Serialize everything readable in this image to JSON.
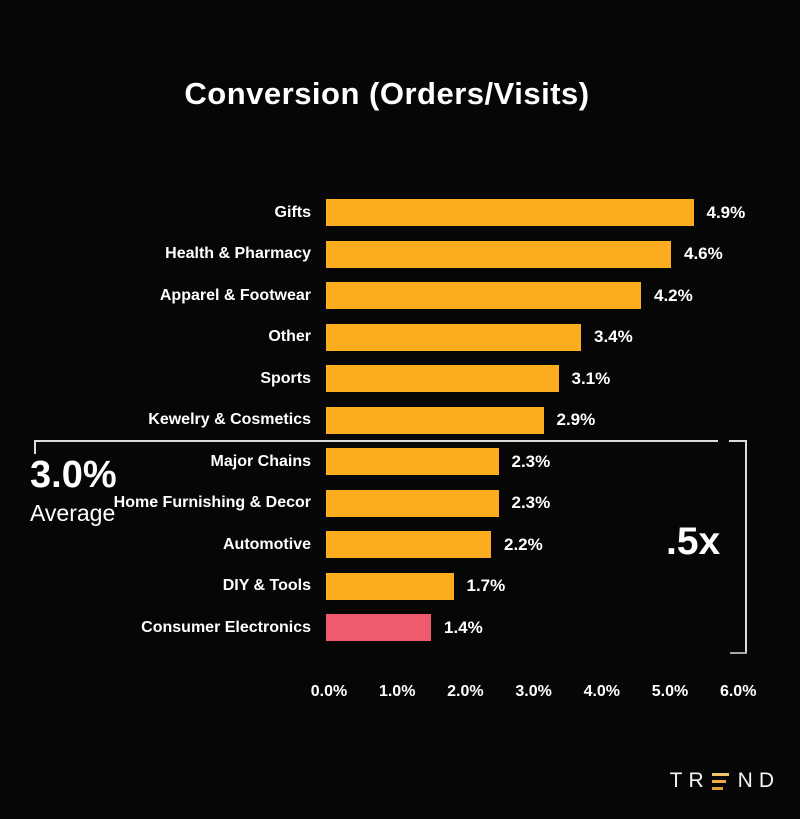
{
  "chart_data": {
    "type": "bar",
    "orientation": "horizontal",
    "title": "Conversion (Orders/Visits)",
    "categories": [
      "Gifts",
      "Health & Pharmacy",
      "Apparel & Footwear",
      "Other",
      "Sports",
      "Kewelry & Cosmetics",
      "Major Chains",
      "Home Furnishing & Decor",
      "Automotive",
      "DIY & Tools",
      "Consumer Electronics"
    ],
    "values": [
      4.9,
      4.6,
      4.2,
      3.4,
      3.1,
      2.9,
      2.3,
      2.3,
      2.2,
      1.7,
      1.4
    ],
    "value_labels": [
      "4.9%",
      "4.6%",
      "4.2%",
      "3.4%",
      "3.1%",
      "2.9%",
      "2.3%",
      "2.3%",
      "2.2%",
      "1.7%",
      "1.4%"
    ],
    "highlight_index": 10,
    "x_ticks": [
      "0.0%",
      "1.0%",
      "2.0%",
      "3.0%",
      "4.0%",
      "5.0%",
      "6.0%"
    ],
    "xlim": [
      0,
      6
    ],
    "grid": false,
    "xlabel": "",
    "ylabel": "",
    "bar_color": "#FBAD1F",
    "highlight_color": "#EF5A6E"
  },
  "annotations": {
    "average_value": "3.0%",
    "average_label": "Average",
    "multiplier_label": ".5x"
  },
  "logo": {
    "left": "TR",
    "right": "ND",
    "name": "TREND"
  },
  "colors": {
    "background": "#060606",
    "text": "#FFFFFF",
    "bar": "#FBAD1F",
    "highlight": "#EF5A6E",
    "bracket": "#DBDBDB",
    "logo_bar_top": "#EFC56C",
    "logo_bar_mid": "#F0AC42",
    "logo_bar_bottom": "#E69D38"
  }
}
